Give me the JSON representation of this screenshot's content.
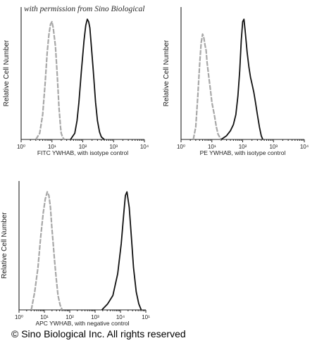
{
  "watermark": "with permission from Sino Biological",
  "copyright": "© Sino Biological Inc. All rights reserved",
  "colors": {
    "control": "#a8a8a8",
    "sample": "#111111"
  },
  "chart_data": [
    {
      "type": "line",
      "xscale": "log",
      "xlim": [
        1,
        10000
      ],
      "ylim": [
        0,
        1
      ],
      "xticks": [
        "10⁰",
        "10¹",
        "10²",
        "10³",
        "10⁴"
      ],
      "xlabel": "FITC YWHAB,  with isotype control",
      "ylabel": "Relative Cell Number",
      "series": [
        {
          "role": "control",
          "x": [
            3,
            4,
            5,
            6,
            7,
            8,
            9,
            10,
            11,
            13,
            15,
            17,
            19,
            20,
            22,
            25
          ],
          "y": [
            0,
            0.05,
            0.2,
            0.45,
            0.7,
            0.85,
            0.93,
            0.95,
            0.9,
            0.75,
            0.5,
            0.25,
            0.1,
            0.05,
            0.02,
            0
          ]
        },
        {
          "role": "sample",
          "x": [
            40,
            55,
            65,
            75,
            90,
            110,
            125,
            140,
            155,
            170,
            190,
            220,
            260,
            300,
            350,
            400,
            500
          ],
          "y": [
            0,
            0.05,
            0.15,
            0.3,
            0.55,
            0.8,
            0.92,
            0.97,
            0.95,
            0.9,
            0.75,
            0.55,
            0.3,
            0.15,
            0.06,
            0.02,
            0
          ]
        }
      ]
    },
    {
      "type": "line",
      "xscale": "log",
      "xlim": [
        1,
        10000
      ],
      "ylim": [
        0,
        1
      ],
      "xticks": [
        "10⁰",
        "10¹",
        "10²",
        "10³",
        "10⁴"
      ],
      "xlabel": "PE YWHAB,  with isotype control",
      "ylabel": "Relative Cell Number",
      "series": [
        {
          "role": "control",
          "x": [
            2.5,
            3,
            3.5,
            4,
            4.5,
            5,
            5.5,
            6,
            6.5,
            7,
            8,
            9,
            10,
            12,
            14,
            16,
            20
          ],
          "y": [
            0,
            0.1,
            0.35,
            0.6,
            0.78,
            0.85,
            0.82,
            0.76,
            0.72,
            0.62,
            0.5,
            0.4,
            0.3,
            0.2,
            0.1,
            0.04,
            0
          ]
        },
        {
          "role": "sample",
          "x": [
            20,
            30,
            40,
            50,
            60,
            70,
            80,
            90,
            100,
            110,
            120,
            140,
            160,
            180,
            200,
            230,
            260,
            300,
            350,
            400,
            450
          ],
          "y": [
            0,
            0.03,
            0.07,
            0.12,
            0.2,
            0.35,
            0.55,
            0.8,
            0.95,
            0.97,
            0.88,
            0.7,
            0.58,
            0.5,
            0.45,
            0.38,
            0.3,
            0.2,
            0.1,
            0.03,
            0
          ]
        }
      ]
    },
    {
      "type": "line",
      "xscale": "log",
      "xlim": [
        1,
        10
      ],
      "ylim": [
        0,
        1
      ],
      "xticks": [
        "10⁰",
        "10¹",
        "10²",
        "10³",
        "10⁴",
        "10¹"
      ],
      "xlabel": "APC YWHAB, with negative control",
      "ylabel": "Relative Cell Number",
      "series": [
        {
          "role": "control",
          "x": [
            1.25,
            1.33,
            1.41,
            1.48,
            1.55,
            1.61,
            1.67,
            1.72,
            1.77,
            1.81,
            1.86,
            1.91,
            1.97,
            2.03,
            2.11,
            2.19
          ],
          "y": [
            0,
            0.15,
            0.35,
            0.6,
            0.8,
            0.92,
            0.98,
            0.95,
            0.85,
            0.7,
            0.55,
            0.4,
            0.25,
            0.12,
            0.04,
            0
          ]
        },
        {
          "role": "sample",
          "x": [
            4.5,
            5.0,
            5.5,
            6.0,
            6.4,
            6.7,
            6.9,
            7.1,
            7.4,
            7.7,
            8.0,
            8.4,
            8.8,
            9.2
          ],
          "y": [
            0,
            0.05,
            0.12,
            0.3,
            0.55,
            0.8,
            0.95,
            0.98,
            0.85,
            0.6,
            0.35,
            0.15,
            0.05,
            0
          ]
        }
      ]
    }
  ]
}
